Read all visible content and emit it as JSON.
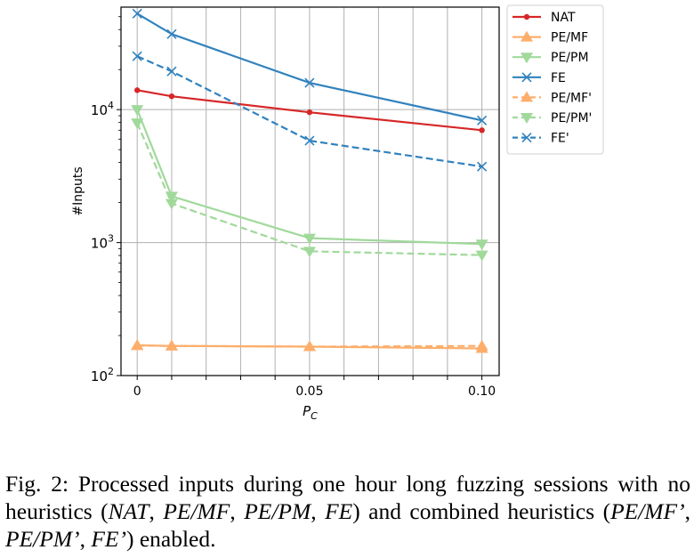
{
  "chart_data": {
    "type": "line",
    "xlabel": "P_C",
    "ylabel": "#Inputs",
    "x": [
      0,
      0.01,
      0.05,
      0.1
    ],
    "xticks": [
      {
        "value": 0,
        "label": "0"
      },
      {
        "value": 0.05,
        "label": "0.05"
      },
      {
        "value": 0.1,
        "label": "0.10"
      }
    ],
    "xlim": [
      -0.0047,
      0.105
    ],
    "yscale": "log",
    "ylim": [
      100,
      59000
    ],
    "yticks": [
      {
        "value": 100,
        "base": "10",
        "exp": "2"
      },
      {
        "value": 1000,
        "base": "10",
        "exp": "3"
      },
      {
        "value": 10000,
        "base": "10",
        "exp": "4"
      }
    ],
    "grid": true,
    "legend": "outside-top-right",
    "series": [
      {
        "name": "NAT",
        "color": "#d62728",
        "marker": "dot",
        "dash": false,
        "values": [
          14000,
          12600,
          9550,
          7000
        ]
      },
      {
        "name": "PE/MF",
        "color": "#fdae6b",
        "marker": "triangle-up",
        "dash": false,
        "values": [
          169,
          167,
          165,
          160
        ]
      },
      {
        "name": "PE/PM",
        "color": "#a1d99b",
        "marker": "triangle-down",
        "dash": false,
        "values": [
          10000,
          2230,
          1080,
          975
        ]
      },
      {
        "name": "FE",
        "color": "#3182bd",
        "marker": "x",
        "dash": false,
        "values": [
          52700,
          37000,
          15900,
          8300
        ]
      },
      {
        "name": "PE/MF'",
        "color": "#fdae6b",
        "marker": "triangle-up",
        "dash": true,
        "values": [
          168,
          167,
          165,
          167
        ]
      },
      {
        "name": "PE/PM'",
        "color": "#a1d99b",
        "marker": "triangle-down",
        "dash": true,
        "values": [
          7940,
          1970,
          860,
          805
        ]
      },
      {
        "name": "FE'",
        "color": "#3182bd",
        "marker": "x",
        "dash": true,
        "values": [
          25200,
          19400,
          5840,
          3730
        ]
      }
    ]
  },
  "caption": {
    "prefix": "Fig. 2: Processed inputs during one hour long fuzzing sessions with no heuristics (",
    "nat": "NAT",
    "sep1": ", ",
    "pemf": "PE/MF",
    "sep2": ", ",
    "pepm": "PE/PM",
    "sep3": ", ",
    "fe": "FE",
    "mid": ") and combined heuristics (",
    "pemf2": "PE/MF’",
    "sep4": ", ",
    "pepm2": "PE/PM’",
    "sep5": ", ",
    "fe2": "FE’",
    "suffix": ") enabled."
  }
}
